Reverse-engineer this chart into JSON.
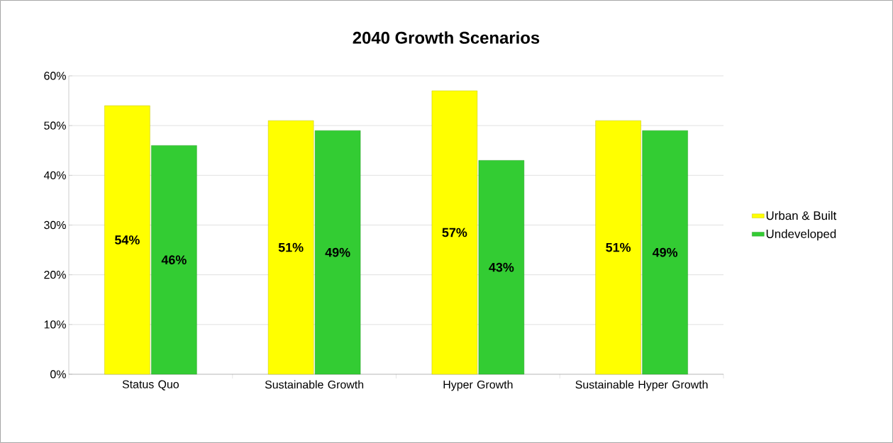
{
  "chart_data": {
    "type": "bar",
    "title": "2040 Growth Scenarios",
    "categories": [
      "Status Quo",
      "Sustainable Growth",
      "Hyper Growth",
      "Sustainable Hyper Growth"
    ],
    "series": [
      {
        "name": "Urban & Built",
        "color": "#ffff00",
        "values": [
          54,
          51,
          57,
          51
        ],
        "value_labels": [
          "54%",
          "51%",
          "57%",
          "51%"
        ]
      },
      {
        "name": "Undeveloped",
        "color": "#33cc33",
        "values": [
          46,
          49,
          43,
          49
        ],
        "value_labels": [
          "46%",
          "49%",
          "43%",
          "49%"
        ]
      }
    ],
    "ylim": [
      0,
      60
    ],
    "yticks": [
      {
        "value": 0,
        "label": "0%"
      },
      {
        "value": 10,
        "label": "10%"
      },
      {
        "value": 20,
        "label": "20%"
      },
      {
        "value": 30,
        "label": "30%"
      },
      {
        "value": 40,
        "label": "40%"
      },
      {
        "value": 50,
        "label": "50%"
      },
      {
        "value": 60,
        "label": "60%"
      }
    ],
    "grid": "y",
    "legend": "right"
  }
}
